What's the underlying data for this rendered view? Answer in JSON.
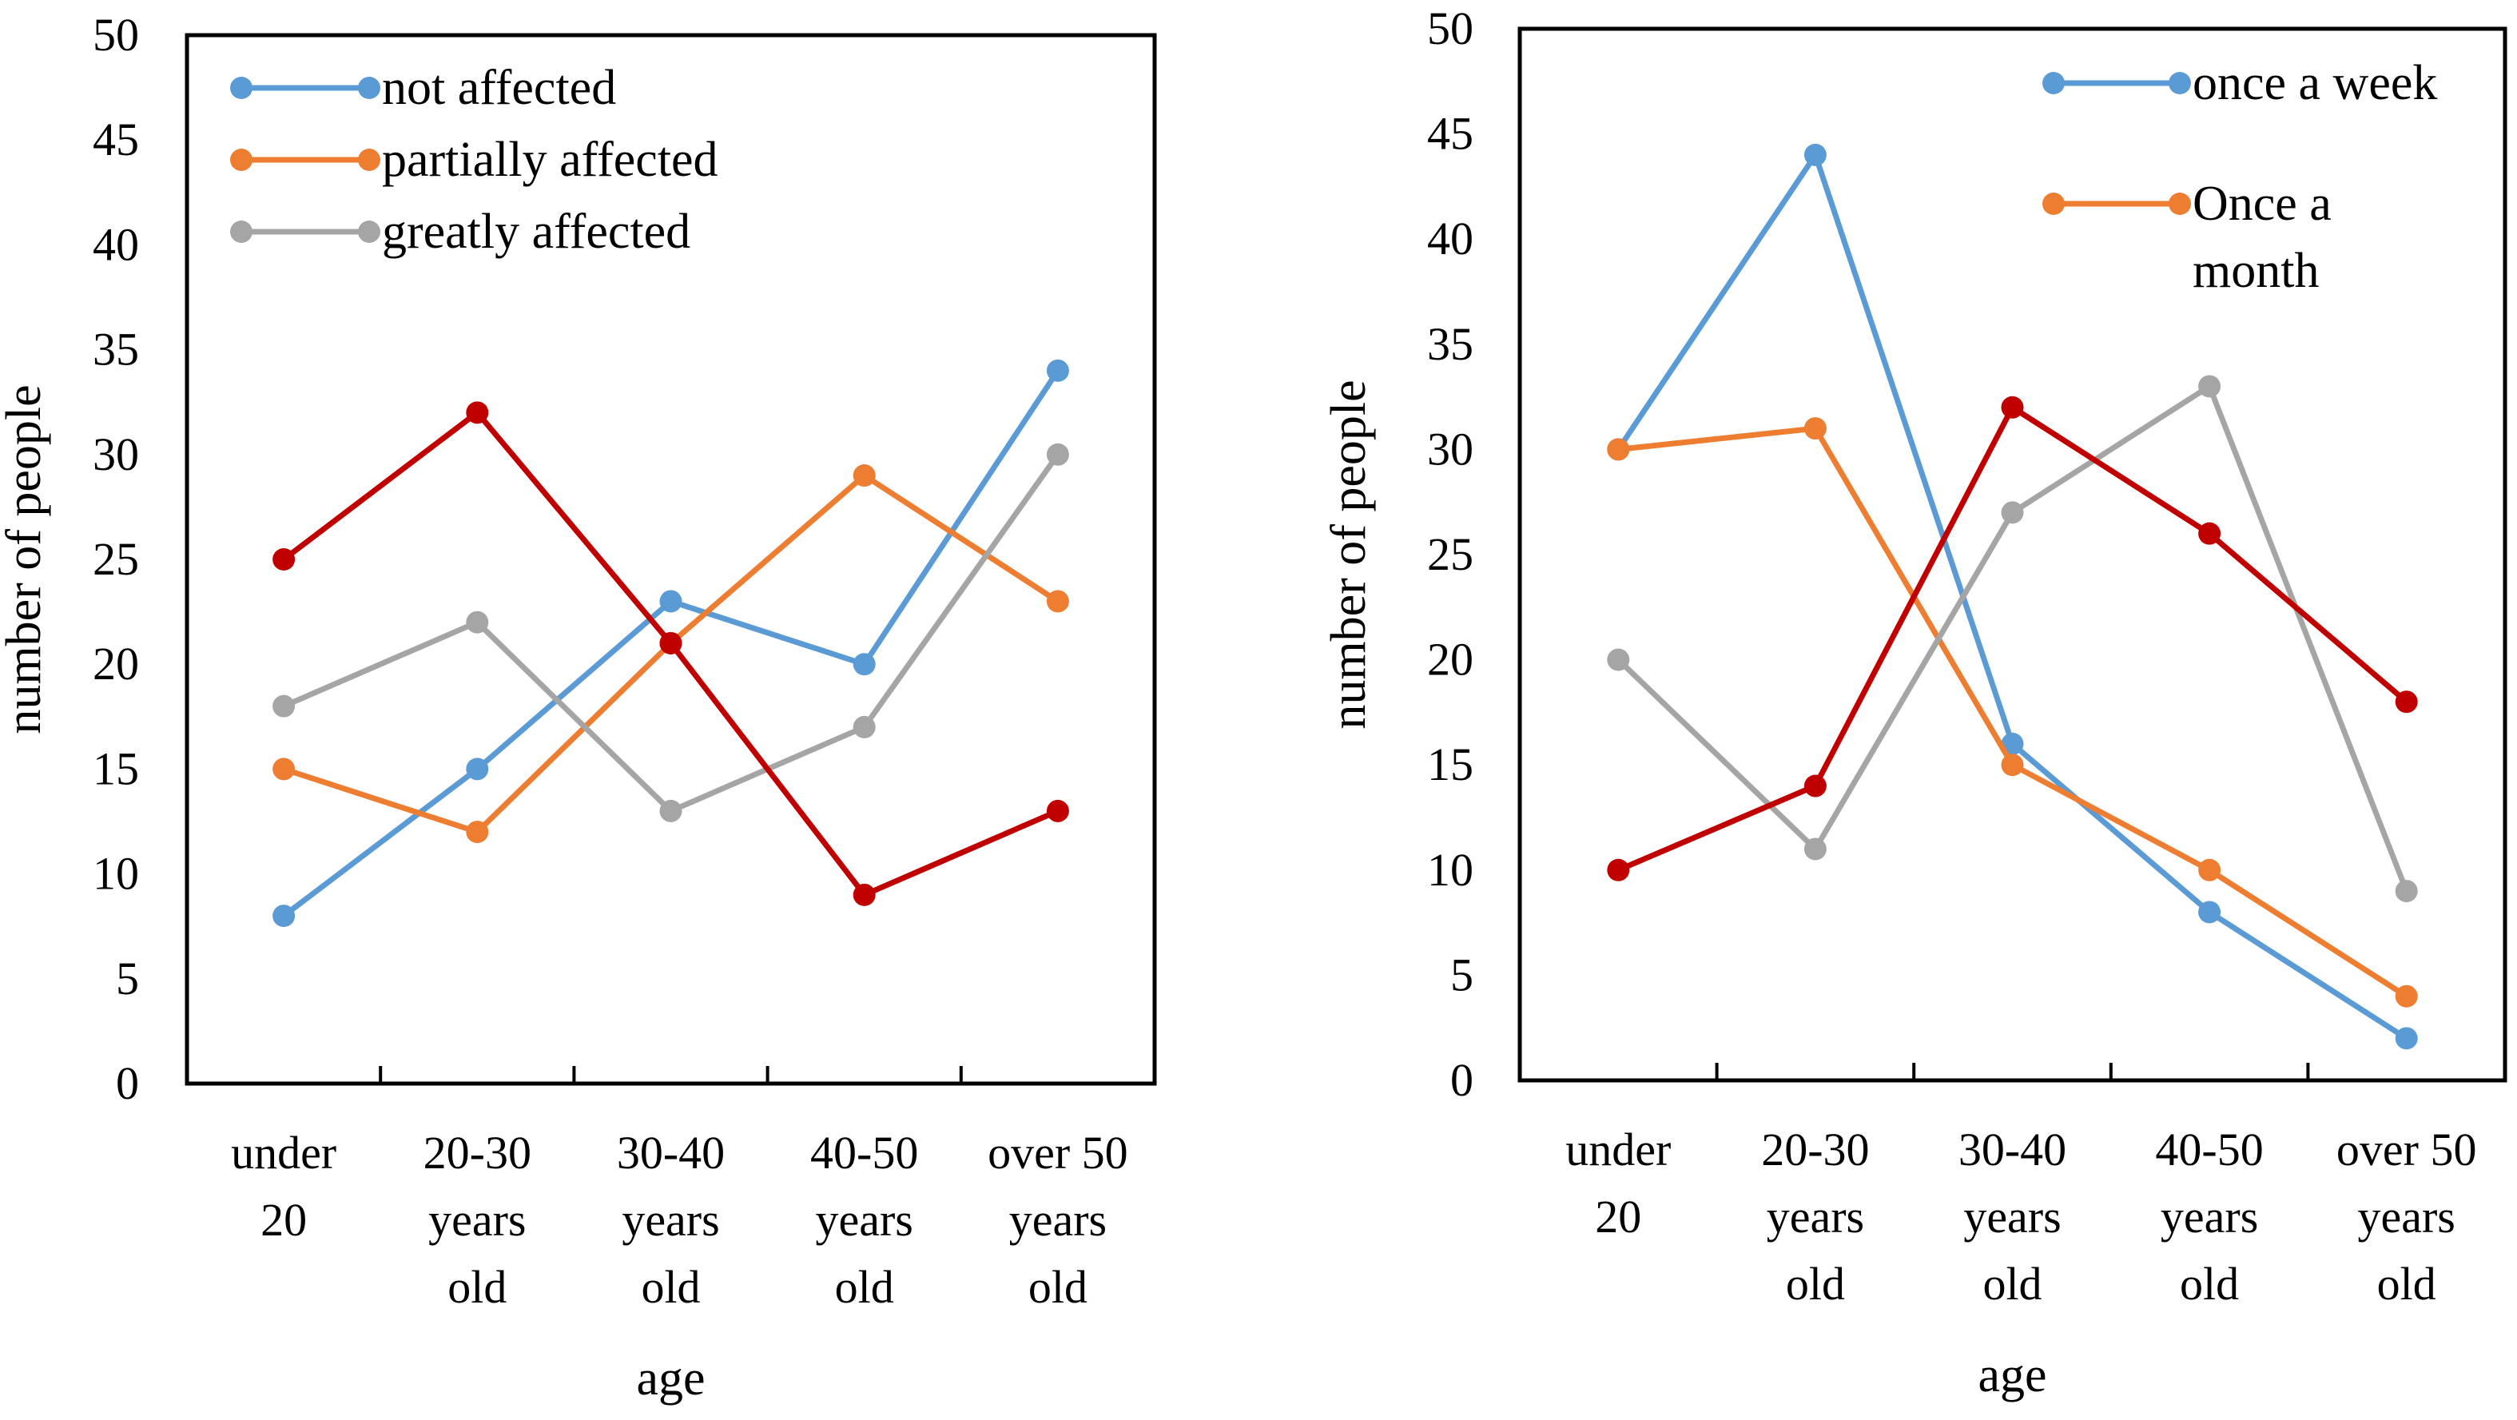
{
  "chart_data": [
    {
      "type": "line",
      "categories": [
        [
          "under",
          "20"
        ],
        [
          "20-30",
          "years",
          "old"
        ],
        [
          "30-40",
          "years",
          "old"
        ],
        [
          "40-50",
          "years",
          "old"
        ],
        [
          "over 50",
          "years",
          "old"
        ]
      ],
      "series": [
        {
          "name": "not affected",
          "color": "#5B9BD5",
          "values": [
            8,
            15,
            23,
            20,
            34
          ],
          "in_legend": true
        },
        {
          "name": "partially affected",
          "color": "#ED7D31",
          "values": [
            15,
            12,
            21,
            29,
            23
          ],
          "in_legend": true
        },
        {
          "name": "greatly affected",
          "color": "#A5A5A5",
          "values": [
            18,
            22,
            13,
            17,
            30
          ],
          "in_legend": true
        },
        {
          "name": "",
          "color": "#C00000",
          "values": [
            25,
            32,
            21,
            9,
            13
          ],
          "in_legend": false
        }
      ],
      "xlabel": "age",
      "ylabel": "number of people",
      "ylim": [
        0,
        50
      ],
      "yticks": [
        0,
        5,
        10,
        15,
        20,
        25,
        30,
        35,
        40,
        45,
        50
      ],
      "legend_position": "top-left",
      "grid": false
    },
    {
      "type": "line",
      "categories": [
        [
          "under",
          "20"
        ],
        [
          "20-30",
          "years",
          "old"
        ],
        [
          "30-40",
          "years",
          "old"
        ],
        [
          "40-50",
          "years",
          "old"
        ],
        [
          "over 50",
          "years",
          "old"
        ]
      ],
      "series": [
        {
          "name": "once a week",
          "color": "#5B9BD5",
          "values": [
            30,
            44,
            16,
            8,
            2
          ],
          "in_legend": true
        },
        {
          "name": "Once a month",
          "label_lines": [
            "Once a",
            "month"
          ],
          "color": "#ED7D31",
          "values": [
            30,
            31,
            15,
            10,
            4
          ],
          "in_legend": true
        },
        {
          "name": "",
          "color": "#A5A5A5",
          "values": [
            20,
            11,
            27,
            33,
            9
          ],
          "in_legend": false
        },
        {
          "name": "",
          "color": "#C00000",
          "values": [
            10,
            14,
            32,
            26,
            18
          ],
          "in_legend": false
        }
      ],
      "xlabel": "age",
      "ylabel": "number of people",
      "ylim": [
        0,
        50
      ],
      "yticks": [
        0,
        5,
        10,
        15,
        20,
        25,
        30,
        35,
        40,
        45,
        50
      ],
      "legend_position": "top-right",
      "grid": false
    }
  ]
}
